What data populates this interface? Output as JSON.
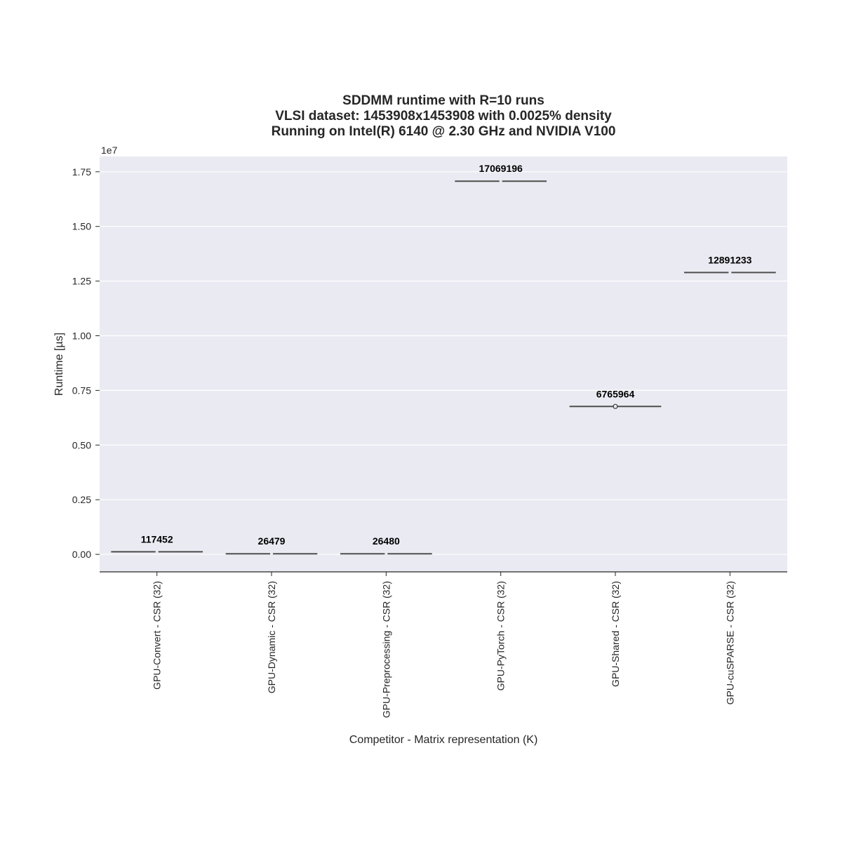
{
  "colors": {
    "plot_background": "#eaeaf2",
    "gridline": "#ffffff",
    "box_line": "#4d4d4d",
    "axis_line": "#262626",
    "text": "#262626",
    "data_label": "#000000"
  },
  "chart_data": {
    "type": "box",
    "title_lines": [
      "SDDMM runtime with R=10 runs",
      "VLSI dataset: 1453908x1453908 with 0.0025% density",
      "Running on Intel(R) 6140 @ 2.30 GHz and NVIDIA V100"
    ],
    "xlabel": "Competitor - Matrix representation (K)",
    "ylabel": "Runtime [µs]",
    "y_offset_label": "1e7",
    "y_scale_factor": 10000000,
    "ylim": [
      -800000,
      18200000
    ],
    "yticks": [
      0,
      2500000,
      5000000,
      7500000,
      10000000,
      12500000,
      15000000,
      17500000
    ],
    "ytick_labels": [
      "0.00",
      "0.25",
      "0.50",
      "0.75",
      "1.00",
      "1.25",
      "1.50",
      "1.75"
    ],
    "grid": true,
    "legend": "none",
    "categories": [
      "GPU-Convert - CSR (32)",
      "GPU-Dynamic - CSR (32)",
      "GPU-Preprocessing - CSR (32)",
      "GPU-PyTorch - CSR (32)",
      "GPU-Shared - CSR (32)",
      "GPU-cuSPARSE - CSR (32)"
    ],
    "medians": [
      117452,
      26479,
      26480,
      17069196,
      6765964,
      12891233
    ],
    "median_labels": [
      "117452",
      "26479",
      "26480",
      "17069196",
      "6765964",
      "12891233"
    ],
    "outliers": [
      [],
      [],
      [],
      [],
      [
        6765964
      ],
      []
    ]
  }
}
